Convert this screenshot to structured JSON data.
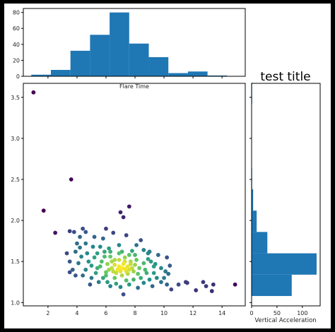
{
  "chart_data": [
    {
      "type": "bar",
      "panel": "top-histogram",
      "xlabel": "Flare Time",
      "ylabel": "",
      "ylim": [
        0,
        85
      ],
      "xlim": [
        0.3,
        15.6
      ],
      "yticks": [
        0,
        20,
        40,
        60,
        80
      ],
      "bins": [
        {
          "x0": 0.85,
          "x1": 2.2,
          "value": 2
        },
        {
          "x0": 2.2,
          "x1": 3.55,
          "value": 8
        },
        {
          "x0": 3.55,
          "x1": 4.9,
          "value": 32
        },
        {
          "x0": 4.9,
          "x1": 6.25,
          "value": 52
        },
        {
          "x0": 6.25,
          "x1": 7.6,
          "value": 80
        },
        {
          "x0": 7.6,
          "x1": 8.95,
          "value": 41
        },
        {
          "x0": 8.95,
          "x1": 10.3,
          "value": 24
        },
        {
          "x0": 10.3,
          "x1": 11.65,
          "value": 4
        },
        {
          "x0": 11.65,
          "x1": 13.0,
          "value": 6
        },
        {
          "x0": 13.0,
          "x1": 14.35,
          "value": 1
        }
      ]
    },
    {
      "type": "scatter",
      "panel": "main-scatter",
      "xlabel": "",
      "ylabel": "",
      "xlim": [
        0.3,
        15.6
      ],
      "ylim": [
        0.96,
        3.67
      ],
      "xticks": [
        2,
        4,
        6,
        8,
        10,
        12,
        14
      ],
      "yticks": [
        "1.0",
        "1.5",
        "2.0",
        "2.5",
        "3.0",
        "3.5"
      ],
      "colormap": [
        "#440154",
        "#3b528b",
        "#21918c",
        "#5ec962",
        "#fde725"
      ],
      "points": [
        [
          1.0,
          3.56
        ],
        [
          1.7,
          2.12
        ],
        [
          3.6,
          2.5
        ],
        [
          2.5,
          1.85
        ],
        [
          6.0,
          1.9
        ],
        [
          7.6,
          2.17
        ],
        [
          7.0,
          2.1
        ],
        [
          7.2,
          2.04
        ],
        [
          3.5,
          1.87
        ],
        [
          3.8,
          1.86
        ],
        [
          4.4,
          1.9
        ],
        [
          4.2,
          1.8
        ],
        [
          4.0,
          1.72
        ],
        [
          4.6,
          1.86
        ],
        [
          6.5,
          1.85
        ],
        [
          5.2,
          1.8
        ],
        [
          5.8,
          1.78
        ],
        [
          7.4,
          1.82
        ],
        [
          8.4,
          1.76
        ],
        [
          9.0,
          1.62
        ],
        [
          9.6,
          1.58
        ],
        [
          10.2,
          1.55
        ],
        [
          3.3,
          1.6
        ],
        [
          3.5,
          1.5
        ],
        [
          3.7,
          1.4
        ],
        [
          3.5,
          1.37
        ],
        [
          3.9,
          1.33
        ],
        [
          4.1,
          1.48
        ],
        [
          4.3,
          1.56
        ],
        [
          4.7,
          1.6
        ],
        [
          5.0,
          1.3
        ],
        [
          5.5,
          1.25
        ],
        [
          4.9,
          1.22
        ],
        [
          6.3,
          1.2
        ],
        [
          6.7,
          1.23
        ],
        [
          7.0,
          1.19
        ],
        [
          7.2,
          1.1
        ],
        [
          8.2,
          1.18
        ],
        [
          9.2,
          1.2
        ],
        [
          9.5,
          1.3
        ],
        [
          10.0,
          1.3
        ],
        [
          10.2,
          1.22
        ],
        [
          10.5,
          1.16
        ],
        [
          11.0,
          1.22
        ],
        [
          11.5,
          1.25
        ],
        [
          12.2,
          1.15
        ],
        [
          12.9,
          1.2
        ],
        [
          13.3,
          1.14
        ],
        [
          13.4,
          1.22
        ],
        [
          14.9,
          1.22
        ],
        [
          12.7,
          1.25
        ],
        [
          11.6,
          1.24
        ],
        [
          4.2,
          1.67
        ],
        [
          4.6,
          1.72
        ],
        [
          5.6,
          1.68
        ],
        [
          6.2,
          1.66
        ],
        [
          6.9,
          1.7
        ],
        [
          7.8,
          1.63
        ],
        [
          8.6,
          1.64
        ],
        [
          9.1,
          1.5
        ],
        [
          9.3,
          1.44
        ],
        [
          8.8,
          1.36
        ],
        [
          8.4,
          1.3
        ],
        [
          7.9,
          1.28
        ],
        [
          7.4,
          1.27
        ],
        [
          6.6,
          1.3
        ],
        [
          6.0,
          1.33
        ],
        [
          5.4,
          1.42
        ],
        [
          5.0,
          1.45
        ],
        [
          4.8,
          1.5
        ],
        [
          5.2,
          1.55
        ],
        [
          5.7,
          1.5
        ],
        [
          6.1,
          1.47
        ],
        [
          6.3,
          1.56
        ],
        [
          6.6,
          1.52
        ],
        [
          6.9,
          1.6
        ],
        [
          7.3,
          1.55
        ],
        [
          7.7,
          1.5
        ],
        [
          8.1,
          1.52
        ],
        [
          8.3,
          1.42
        ],
        [
          7.9,
          1.38
        ],
        [
          7.5,
          1.35
        ],
        [
          7.1,
          1.33
        ],
        [
          6.7,
          1.36
        ],
        [
          6.4,
          1.42
        ],
        [
          6.6,
          1.46
        ],
        [
          6.9,
          1.44
        ],
        [
          7.2,
          1.47
        ],
        [
          7.5,
          1.44
        ],
        [
          7.8,
          1.42
        ],
        [
          8.0,
          1.46
        ],
        [
          7.6,
          1.4
        ],
        [
          7.0,
          1.38
        ],
        [
          6.8,
          1.4
        ],
        [
          7.3,
          1.41
        ],
        [
          7.1,
          1.42
        ],
        [
          6.9,
          1.41
        ],
        [
          7.4,
          1.38
        ],
        [
          6.5,
          1.38
        ],
        [
          6.2,
          1.4
        ],
        [
          8.6,
          1.48
        ],
        [
          8.9,
          1.53
        ],
        [
          9.4,
          1.47
        ],
        [
          9.8,
          1.42
        ],
        [
          10.1,
          1.38
        ],
        [
          10.4,
          1.45
        ],
        [
          4.4,
          1.33
        ],
        [
          4.6,
          1.4
        ],
        [
          5.3,
          1.36
        ],
        [
          5.8,
          1.3
        ],
        [
          6.1,
          1.25
        ],
        [
          7.6,
          1.22
        ],
        [
          8.6,
          1.24
        ],
        [
          9.0,
          1.28
        ],
        [
          9.8,
          1.25
        ],
        [
          10.3,
          1.35
        ],
        [
          3.9,
          1.62
        ],
        [
          5.4,
          1.6
        ],
        [
          5.9,
          1.62
        ],
        [
          6.3,
          1.62
        ],
        [
          7.1,
          1.62
        ],
        [
          7.6,
          1.58
        ],
        [
          8.0,
          1.58
        ],
        [
          8.9,
          1.6
        ],
        [
          6.9,
          1.52
        ],
        [
          7.3,
          1.5
        ],
        [
          7.7,
          1.47
        ],
        [
          6.4,
          1.5
        ],
        [
          5.9,
          1.56
        ],
        [
          5.6,
          1.44
        ],
        [
          6.0,
          1.37
        ],
        [
          8.2,
          1.35
        ],
        [
          8.7,
          1.4
        ],
        [
          9.3,
          1.36
        ],
        [
          5.1,
          1.68
        ],
        [
          8.1,
          1.7
        ]
      ]
    },
    {
      "type": "bar",
      "orientation": "horizontal",
      "panel": "right-histogram",
      "title": "test title",
      "xlabel": "Vertical Acceleration",
      "ylabel": "",
      "xlim": [
        0,
        135
      ],
      "xticks": [
        0,
        50,
        100
      ],
      "ylim": [
        0.96,
        3.67
      ],
      "bins": [
        {
          "y0": 1.08,
          "y1": 1.34,
          "value": 79
        },
        {
          "y0": 1.34,
          "y1": 1.6,
          "value": 128
        },
        {
          "y0": 1.6,
          "y1": 1.86,
          "value": 31
        },
        {
          "y0": 1.86,
          "y1": 2.12,
          "value": 10
        },
        {
          "y0": 2.12,
          "y1": 2.38,
          "value": 3
        },
        {
          "y0": 2.38,
          "y1": 2.64,
          "value": 1
        },
        {
          "y0": 2.64,
          "y1": 2.9,
          "value": 0
        },
        {
          "y0": 2.9,
          "y1": 3.16,
          "value": 0
        },
        {
          "y0": 3.16,
          "y1": 3.42,
          "value": 0
        },
        {
          "y0": 3.42,
          "y1": 3.68,
          "value": 1
        }
      ]
    }
  ]
}
